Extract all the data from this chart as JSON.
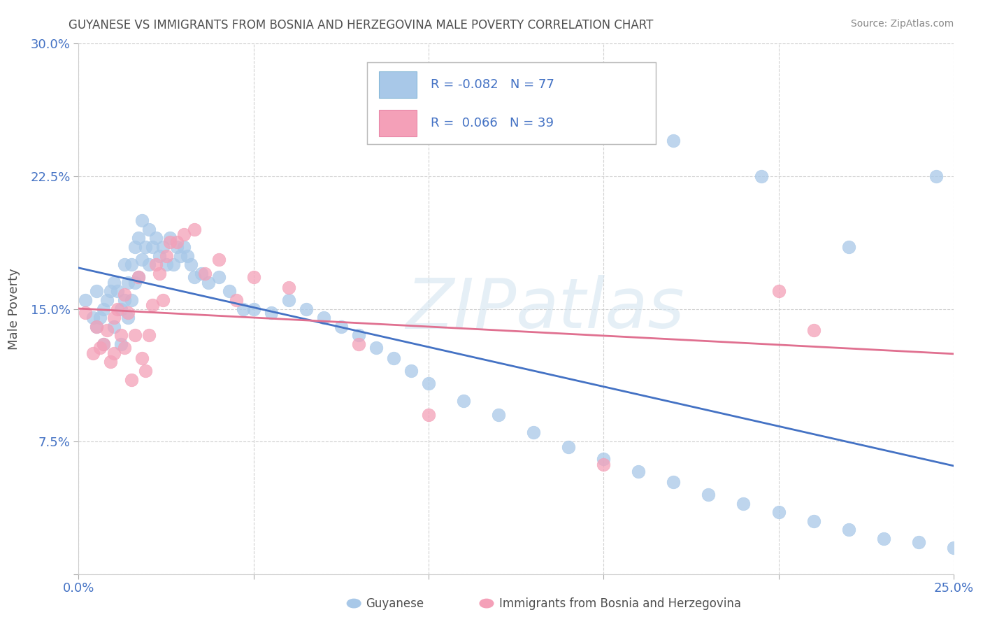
{
  "title": "GUYANESE VS IMMIGRANTS FROM BOSNIA AND HERZEGOVINA MALE POVERTY CORRELATION CHART",
  "source": "Source: ZipAtlas.com",
  "ylabel": "Male Poverty",
  "xlim": [
    0.0,
    0.25
  ],
  "ylim": [
    0.0,
    0.3
  ],
  "xtick_labels": [
    "0.0%",
    "",
    "",
    "",
    "",
    "25.0%"
  ],
  "ytick_labels": [
    "",
    "7.5%",
    "15.0%",
    "22.5%",
    "30.0%"
  ],
  "watermark": "ZIPatlas",
  "color_blue": "#a8c8e8",
  "color_pink": "#f4a0b8",
  "line_blue": "#4472c4",
  "line_pink": "#e07090",
  "legend_text_color": "#4472c4",
  "title_color": "#505050",
  "axis_label_color": "#505050",
  "tick_label_color": "#4472c4",
  "background_color": "#ffffff",
  "grid_color": "#cccccc",
  "blue_x": [
    0.002,
    0.004,
    0.005,
    0.005,
    0.006,
    0.007,
    0.007,
    0.008,
    0.009,
    0.01,
    0.01,
    0.011,
    0.012,
    0.012,
    0.013,
    0.013,
    0.014,
    0.014,
    0.015,
    0.015,
    0.016,
    0.016,
    0.017,
    0.017,
    0.018,
    0.018,
    0.019,
    0.02,
    0.02,
    0.021,
    0.022,
    0.023,
    0.024,
    0.025,
    0.026,
    0.027,
    0.028,
    0.029,
    0.03,
    0.031,
    0.032,
    0.033,
    0.035,
    0.037,
    0.04,
    0.043,
    0.047,
    0.05,
    0.055,
    0.06,
    0.065,
    0.07,
    0.075,
    0.08,
    0.085,
    0.09,
    0.095,
    0.1,
    0.11,
    0.12,
    0.13,
    0.14,
    0.15,
    0.16,
    0.17,
    0.18,
    0.19,
    0.2,
    0.21,
    0.22,
    0.23,
    0.24,
    0.25,
    0.17,
    0.195,
    0.22,
    0.245
  ],
  "blue_y": [
    0.155,
    0.145,
    0.16,
    0.14,
    0.145,
    0.15,
    0.13,
    0.155,
    0.16,
    0.165,
    0.14,
    0.16,
    0.15,
    0.13,
    0.175,
    0.155,
    0.165,
    0.145,
    0.175,
    0.155,
    0.185,
    0.165,
    0.19,
    0.168,
    0.2,
    0.178,
    0.185,
    0.195,
    0.175,
    0.185,
    0.19,
    0.18,
    0.185,
    0.175,
    0.19,
    0.175,
    0.185,
    0.18,
    0.185,
    0.18,
    0.175,
    0.168,
    0.17,
    0.165,
    0.168,
    0.16,
    0.15,
    0.15,
    0.148,
    0.155,
    0.15,
    0.145,
    0.14,
    0.135,
    0.128,
    0.122,
    0.115,
    0.108,
    0.098,
    0.09,
    0.08,
    0.072,
    0.065,
    0.058,
    0.052,
    0.045,
    0.04,
    0.035,
    0.03,
    0.025,
    0.02,
    0.018,
    0.015,
    0.245,
    0.225,
    0.185,
    0.225
  ],
  "pink_x": [
    0.002,
    0.004,
    0.005,
    0.006,
    0.007,
    0.008,
    0.009,
    0.01,
    0.01,
    0.011,
    0.012,
    0.013,
    0.013,
    0.014,
    0.015,
    0.016,
    0.017,
    0.018,
    0.019,
    0.02,
    0.021,
    0.022,
    0.023,
    0.024,
    0.025,
    0.026,
    0.028,
    0.03,
    0.033,
    0.036,
    0.04,
    0.045,
    0.05,
    0.06,
    0.08,
    0.1,
    0.15,
    0.2,
    0.21
  ],
  "pink_y": [
    0.148,
    0.125,
    0.14,
    0.128,
    0.13,
    0.138,
    0.12,
    0.145,
    0.125,
    0.15,
    0.135,
    0.128,
    0.158,
    0.148,
    0.11,
    0.135,
    0.168,
    0.122,
    0.115,
    0.135,
    0.152,
    0.175,
    0.17,
    0.155,
    0.18,
    0.188,
    0.188,
    0.192,
    0.195,
    0.17,
    0.178,
    0.155,
    0.168,
    0.162,
    0.13,
    0.09,
    0.062,
    0.16,
    0.138
  ]
}
